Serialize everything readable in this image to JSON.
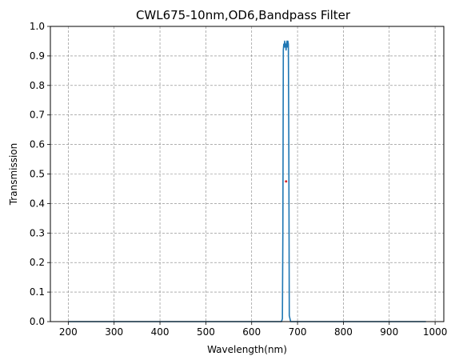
{
  "chart_data": {
    "type": "line",
    "title": "CWL675-10nm,OD6,Bandpass Filter",
    "xlabel": "Wavelength(nm)",
    "ylabel": "Transmission",
    "xlim": [
      200,
      980
    ],
    "ylim": [
      0,
      1.0
    ],
    "grid": true,
    "x_ticks": [
      200,
      300,
      400,
      500,
      600,
      700,
      800,
      900,
      1000
    ],
    "y_ticks": [
      0.0,
      0.1,
      0.2,
      0.3,
      0.4,
      0.5,
      0.6,
      0.7,
      0.8,
      0.9,
      1.0
    ],
    "x_tick_labels": [
      "200",
      "300",
      "400",
      "500",
      "600",
      "700",
      "800",
      "900",
      "1000"
    ],
    "y_tick_labels": [
      "0.0",
      "0.1",
      "0.2",
      "0.3",
      "0.4",
      "0.5",
      "0.6",
      "0.7",
      "0.8",
      "0.9",
      "1.0"
    ],
    "series": [
      {
        "color": "#1f77b4",
        "points": [
          [
            200,
            0.0
          ],
          [
            660,
            0.0
          ],
          [
            665,
            0.0
          ],
          [
            667,
            0.01
          ],
          [
            668,
            0.3
          ],
          [
            669,
            0.92
          ],
          [
            670,
            0.94
          ],
          [
            671,
            0.93
          ],
          [
            672,
            0.95
          ],
          [
            673,
            0.93
          ],
          [
            674,
            0.94
          ],
          [
            675,
            0.92
          ],
          [
            676,
            0.94
          ],
          [
            677,
            0.95
          ],
          [
            678,
            0.93
          ],
          [
            679,
            0.95
          ],
          [
            680,
            0.94
          ],
          [
            681,
            0.6
          ],
          [
            682,
            0.02
          ],
          [
            685,
            0.0
          ],
          [
            700,
            0.0
          ],
          [
            980,
            0.0
          ]
        ]
      }
    ],
    "markers": [
      {
        "x": 675,
        "y": 0.475,
        "color": "#d62728"
      }
    ]
  }
}
